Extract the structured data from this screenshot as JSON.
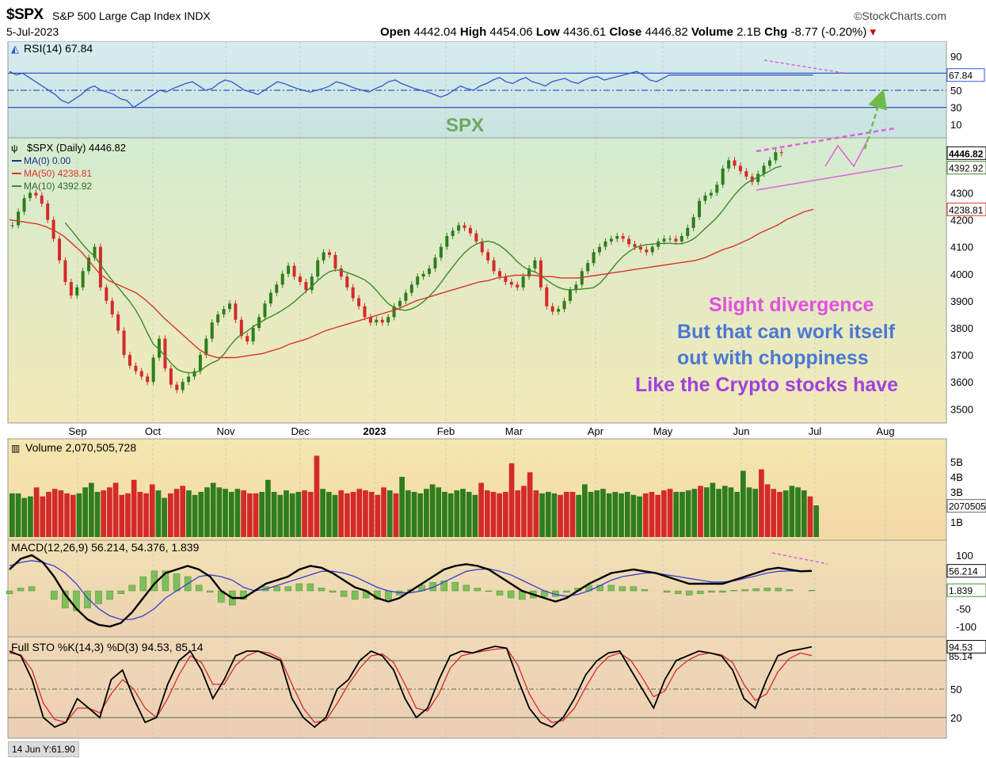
{
  "header": {
    "symbol": "$SPX",
    "name": "S&P 500 Large Cap Index",
    "exchange": "INDX",
    "date": "5-Jul-2023",
    "watermark": "StockCharts.com",
    "open_label": "Open",
    "open": "4442.04",
    "high_label": "High",
    "high": "4454.06",
    "low_label": "Low",
    "low": "4436.61",
    "close_label": "Close",
    "close": "4446.82",
    "volume_label": "Volume",
    "volume": "2.1B",
    "chg_label": "Chg",
    "chg": "-8.77 (-0.20%)"
  },
  "footer_readout": "14 Jun Y:61.90",
  "colors": {
    "up": "#2e7d1e",
    "down": "#d42a2a",
    "ma50": "#d9342b",
    "ma10": "#3d8a2a",
    "rsi": "#3355cc",
    "macd": "#000000",
    "signal": "#3b3bd4",
    "hist": "#7fbf5a",
    "pink": "#e060e0",
    "arrow": "#6fbb4a"
  },
  "chart_data": [
    {
      "type": "line",
      "panel": "rsi",
      "legend": "RSI(14) 67.84",
      "ylim": [
        0,
        100
      ],
      "ticks": [
        90,
        50,
        30,
        10
      ],
      "guide_levels": [
        70,
        50,
        30
      ],
      "last_label": "67.84",
      "series": [
        {
          "name": "RSI(14)",
          "x": [
            0,
            10,
            20,
            30,
            40,
            50,
            60,
            70,
            80,
            90,
            100,
            110,
            120,
            130,
            140,
            150,
            160,
            170,
            180,
            190,
            200,
            210,
            220,
            230,
            240,
            250,
            260,
            270,
            280,
            290,
            300,
            310,
            320,
            330,
            340,
            350,
            360,
            370,
            380,
            390,
            400,
            410,
            420,
            430,
            440,
            450,
            460,
            470,
            480,
            490,
            500,
            510,
            520,
            530,
            540,
            550,
            560,
            570,
            580,
            590,
            600,
            610,
            620,
            630,
            640,
            650,
            660,
            670,
            680,
            690,
            700,
            710,
            720,
            730,
            740,
            750,
            760,
            770,
            780,
            790,
            800,
            810,
            820,
            830,
            840,
            850,
            860,
            870,
            880,
            890,
            900,
            910,
            920,
            930,
            940,
            950,
            960,
            970,
            980,
            990,
            1000,
            1010,
            1020,
            1030,
            1040,
            1050,
            1060,
            1070,
            1080,
            1090,
            1100,
            1110,
            1120,
            1130,
            1140,
            1150,
            1160,
            1170,
            1180,
            1190,
            1200,
            1210,
            1220,
            1230,
            1240
          ],
          "values": [
            72,
            68,
            70,
            65,
            60,
            55,
            50,
            45,
            38,
            35,
            40,
            45,
            52,
            55,
            50,
            48,
            45,
            40,
            38,
            30,
            35,
            40,
            45,
            50,
            48,
            52,
            55,
            58,
            60,
            55,
            50,
            52,
            58,
            62,
            60,
            55,
            50,
            48,
            45,
            50,
            55,
            60,
            58,
            55,
            52,
            50,
            48,
            50,
            52,
            55,
            60,
            58,
            55,
            52,
            50,
            48,
            52,
            55,
            60,
            62,
            58,
            55,
            52,
            50,
            48,
            45,
            42,
            45,
            50,
            55,
            52,
            50,
            55,
            58,
            62,
            65,
            60,
            58,
            62,
            65,
            60,
            58,
            55,
            60,
            62,
            64,
            60,
            58,
            62,
            65,
            66,
            62,
            64,
            66,
            68,
            70,
            72,
            68,
            62,
            60,
            64,
            68,
            67.84,
            67.84,
            67.84,
            67.84,
            67.84,
            67.84,
            67.84,
            67.84,
            67.84,
            67.84,
            67.84,
            67.84,
            67.84,
            67.84,
            67.84,
            67.84,
            67.84,
            67.84,
            67.84,
            67.84,
            67.84,
            67.84,
            67.84
          ]
        }
      ]
    },
    {
      "type": "candlestick",
      "panel": "price",
      "legend": [
        "$SPX (Daily) 4446.82",
        "MA(0) 0.00",
        "MA(50) 4238.81",
        "MA(10) 4392.92"
      ],
      "ylim": [
        3460,
        4480
      ],
      "ticks": [
        4300,
        4200,
        4100,
        4000,
        3900,
        3800,
        3700,
        3600,
        3500
      ],
      "last_labels": [
        "4446.82",
        "4392.92",
        "4238.81"
      ],
      "x_labels": [
        "Sep",
        "Oct",
        "Nov",
        "Dec",
        "2023",
        "Feb",
        "Mar",
        "Apr",
        "May",
        "Jun",
        "Jul",
        "Aug"
      ],
      "watermark_label": "SPX",
      "closes": [
        4180,
        4230,
        4280,
        4300,
        4290,
        4260,
        4200,
        4130,
        4050,
        3970,
        3920,
        3950,
        4010,
        4060,
        4100,
        3950,
        3900,
        3850,
        3790,
        3700,
        3660,
        3640,
        3620,
        3600,
        3690,
        3760,
        3650,
        3590,
        3570,
        3600,
        3620,
        3640,
        3700,
        3760,
        3820,
        3850,
        3870,
        3890,
        3830,
        3770,
        3750,
        3800,
        3840,
        3890,
        3930,
        3960,
        4000,
        4030,
        3990,
        3970,
        3940,
        3990,
        4050,
        4080,
        4070,
        4020,
        3990,
        3950,
        3910,
        3880,
        3840,
        3820,
        3830,
        3820,
        3840,
        3880,
        3900,
        3930,
        3960,
        3990,
        4000,
        4020,
        4060,
        4100,
        4140,
        4160,
        4180,
        4170,
        4150,
        4120,
        4080,
        4050,
        4010,
        3990,
        3970,
        3960,
        3950,
        3990,
        4020,
        4050,
        3950,
        3880,
        3860,
        3870,
        3900,
        3940,
        3960,
        4010,
        4040,
        4080,
        4100,
        4120,
        4130,
        4140,
        4130,
        4110,
        4100,
        4090,
        4080,
        4100,
        4120,
        4130,
        4130,
        4120,
        4140,
        4170,
        4210,
        4270,
        4290,
        4300,
        4330,
        4390,
        4420,
        4400,
        4380,
        4360,
        4340,
        4370,
        4400,
        4420,
        4450,
        4446.82
      ],
      "ma50": [
        4200,
        4195,
        4190,
        4185,
        4175,
        4160,
        4140,
        4110,
        4080,
        4040,
        4000,
        3975,
        3960,
        3945,
        3930,
        3905,
        3875,
        3840,
        3810,
        3780,
        3750,
        3720,
        3700,
        3690,
        3690,
        3690,
        3695,
        3700,
        3705,
        3715,
        3725,
        3740,
        3750,
        3760,
        3775,
        3790,
        3800,
        3810,
        3820,
        3830,
        3840,
        3850,
        3860,
        3870,
        3885,
        3900,
        3910,
        3920,
        3930,
        3940,
        3950,
        3960,
        3970,
        3975,
        3985,
        3990,
        3995,
        3995,
        3995,
        3990,
        3990,
        3985,
        3985,
        3985,
        3990,
        3995,
        4000,
        4005,
        4010,
        4015,
        4020,
        4025,
        4030,
        4035,
        4040,
        4045,
        4050,
        4060,
        4075,
        4090,
        4100,
        4115,
        4130,
        4150,
        4165,
        4180,
        4200,
        4215,
        4230,
        4238.81
      ]
    },
    {
      "type": "bar",
      "panel": "volume",
      "legend": "Volume 2,070,505,728",
      "ylim": [
        0,
        6000000000
      ],
      "ticks": [
        "5B",
        "4B",
        "3B",
        "1B"
      ],
      "last_label": "2070505",
      "values": [
        2.9,
        2.9,
        2.6,
        2.7,
        3.3,
        2.7,
        3.0,
        3.2,
        3.1,
        2.9,
        2.8,
        2.9,
        3.3,
        3.6,
        3.0,
        3.1,
        3.3,
        3.6,
        2.8,
        2.9,
        3.8,
        3.0,
        2.9,
        3.5,
        3.1,
        2.6,
        2.9,
        3.2,
        3.4,
        3.1,
        2.8,
        3.0,
        3.3,
        3.6,
        3.3,
        3.2,
        3.0,
        3.2,
        3.1,
        2.9,
        2.9,
        3.0,
        3.8,
        3.0,
        2.8,
        3.1,
        2.9,
        3.0,
        3.1,
        3.0,
        5.4,
        3.2,
        3.0,
        2.8,
        3.1,
        2.9,
        3.0,
        3.2,
        3.1,
        3.0,
        2.8,
        3.3,
        3.1,
        2.9,
        4.0,
        3.1,
        3.0,
        2.9,
        3.2,
        3.5,
        3.3,
        3.0,
        2.9,
        3.1,
        3.2,
        3.0,
        2.8,
        3.6,
        3.1,
        3.0,
        2.9,
        3.0,
        4.9,
        3.1,
        3.4,
        4.3,
        3.1,
        2.9,
        3.0,
        2.9,
        2.8,
        3.0,
        3.0,
        2.8,
        3.5,
        3.0,
        3.1,
        3.2,
        2.9,
        3.0,
        2.9,
        3.0,
        2.8,
        2.7,
        2.9,
        3.0,
        2.8,
        3.1,
        3.2,
        3.0,
        3.0,
        3.1,
        3.2,
        3.4,
        3.3,
        3.6,
        3.2,
        3.4,
        3.3,
        3.0,
        4.4,
        3.3,
        3.2,
        4.5,
        3.5,
        3.2,
        3.0,
        3.1,
        3.4,
        3.3,
        3.1,
        2.7,
        2.1
      ]
    },
    {
      "type": "line",
      "panel": "macd",
      "legend": "MACD(12,26,9) 56.214, 54.376, 1.839",
      "ylim": [
        -120,
        120
      ],
      "ticks": [
        100,
        50,
        0,
        -50,
        -100
      ],
      "last_labels": [
        "56.214",
        "1.839"
      ],
      "series": [
        {
          "name": "MACD",
          "values": [
            60,
            90,
            100,
            80,
            40,
            -10,
            -50,
            -80,
            -95,
            -100,
            -90,
            -60,
            -20,
            20,
            50,
            60,
            70,
            60,
            40,
            0,
            -20,
            -20,
            0,
            20,
            30,
            40,
            60,
            70,
            65,
            50,
            30,
            10,
            0,
            -20,
            -30,
            -20,
            0,
            20,
            40,
            60,
            70,
            75,
            70,
            60,
            40,
            20,
            0,
            -10,
            -20,
            -30,
            -20,
            0,
            20,
            35,
            50,
            55,
            60,
            55,
            50,
            40,
            30,
            20,
            20,
            20,
            20,
            30,
            40,
            50,
            60,
            65,
            60,
            55,
            56.214
          ]
        },
        {
          "name": "Signal",
          "values": [
            70,
            80,
            85,
            80,
            70,
            50,
            20,
            -20,
            -50,
            -70,
            -80,
            -80,
            -70,
            -50,
            -20,
            0,
            20,
            40,
            45,
            40,
            30,
            10,
            0,
            5,
            15,
            25,
            35,
            45,
            55,
            55,
            50,
            40,
            25,
            10,
            0,
            -5,
            -5,
            0,
            10,
            25,
            40,
            55,
            60,
            62,
            55,
            45,
            30,
            15,
            0,
            -10,
            -15,
            -10,
            0,
            15,
            30,
            40,
            45,
            50,
            50,
            45,
            40,
            35,
            30,
            25,
            25,
            28,
            35,
            42,
            50,
            55,
            56,
            55,
            54.376
          ]
        }
      ]
    },
    {
      "type": "line",
      "panel": "stochastic",
      "legend": "Full STO %K(14,3) %D(3) 94.53, 85.14",
      "ylim": [
        0,
        100
      ],
      "ticks": [
        50,
        20
      ],
      "guide_levels": [
        80,
        50,
        20
      ],
      "last_labels": [
        "94.53",
        "85.14"
      ],
      "series": [
        {
          "name": "%K",
          "values": [
            90,
            85,
            60,
            20,
            10,
            15,
            40,
            30,
            20,
            60,
            70,
            40,
            15,
            20,
            55,
            80,
            90,
            70,
            40,
            60,
            85,
            90,
            90,
            85,
            80,
            40,
            20,
            10,
            20,
            50,
            60,
            80,
            90,
            85,
            70,
            40,
            20,
            30,
            60,
            85,
            90,
            88,
            92,
            95,
            93,
            60,
            30,
            15,
            10,
            20,
            40,
            65,
            80,
            88,
            90,
            70,
            50,
            30,
            60,
            80,
            85,
            90,
            88,
            85,
            70,
            40,
            30,
            60,
            85,
            90,
            92,
            94.53
          ]
        },
        {
          "name": "%D",
          "values": [
            88,
            86,
            70,
            35,
            18,
            15,
            30,
            30,
            25,
            45,
            60,
            50,
            30,
            20,
            40,
            65,
            85,
            78,
            55,
            55,
            75,
            85,
            90,
            88,
            82,
            55,
            30,
            15,
            17,
            35,
            55,
            72,
            85,
            87,
            78,
            55,
            30,
            27,
            45,
            72,
            85,
            88,
            90,
            92,
            93,
            75,
            45,
            25,
            15,
            17,
            30,
            52,
            72,
            84,
            88,
            80,
            62,
            42,
            48,
            70,
            80,
            86,
            88,
            86,
            78,
            55,
            38,
            45,
            68,
            82,
            88,
            85.14
          ]
        }
      ]
    }
  ],
  "annotations": {
    "line1": "Slight divergence",
    "line2": "But that can work itself",
    "line3": "out with choppiness",
    "line4": "Like the Crypto stocks have"
  }
}
